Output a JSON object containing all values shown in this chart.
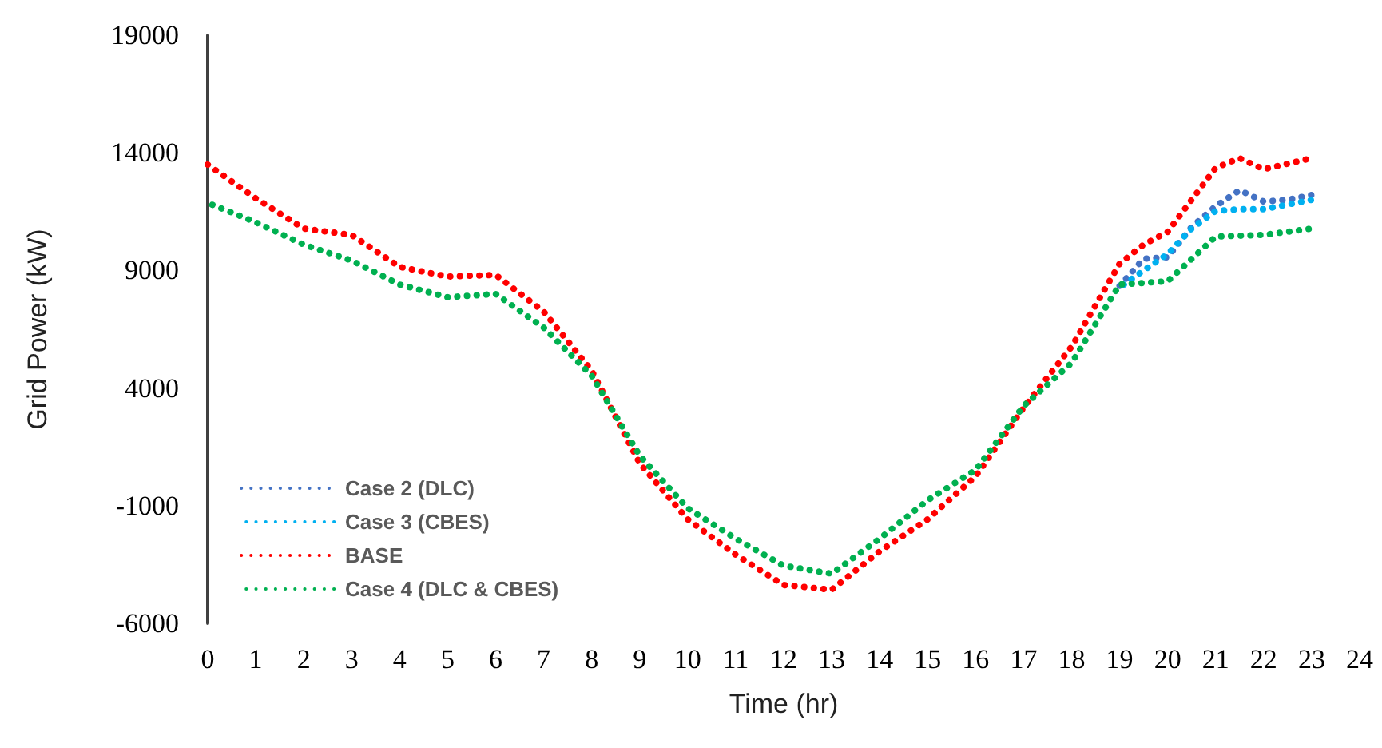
{
  "chart_data": {
    "type": "line",
    "xlabel": "Time (hr)",
    "ylabel": "Grid Power (kW)",
    "xlim": [
      0,
      24
    ],
    "xticks": [
      0,
      1,
      2,
      3,
      4,
      5,
      6,
      7,
      8,
      9,
      10,
      11,
      12,
      13,
      14,
      15,
      16,
      17,
      18,
      19,
      20,
      21,
      22,
      23,
      24
    ],
    "ylim": [
      -6000,
      19000
    ],
    "yticks": [
      -6000,
      -1000,
      4000,
      9000,
      14000,
      19000
    ],
    "grid": false,
    "legend": "bottom left",
    "marker": "none",
    "line_style": "dotted",
    "series": [
      {
        "name": "Case 2 (DLC)",
        "color": "#4472c4",
        "x": [
          19,
          19.5,
          20,
          20.5,
          21,
          21.5,
          22,
          22.5,
          23
        ],
        "values": [
          8350,
          9500,
          9560,
          10850,
          11730,
          12410,
          11930,
          12000,
          12210
        ]
      },
      {
        "name": "Case 3 (CBES)",
        "color": "#00b0f0",
        "x": [
          19,
          19.5,
          20,
          20.5,
          21,
          21.5,
          22,
          22.5,
          23
        ],
        "values": [
          8270,
          9000,
          9700,
          10780,
          11530,
          11600,
          11600,
          11800,
          12000
        ]
      },
      {
        "name": "BASE",
        "color": "#ff0000",
        "x": [
          0,
          1,
          2,
          3,
          4,
          5,
          6,
          7,
          8,
          9,
          10,
          11,
          12,
          13,
          14,
          15,
          16,
          17,
          18,
          19,
          19.5,
          20,
          21,
          21.5,
          22,
          23
        ],
        "values": [
          13500,
          12070,
          10780,
          10510,
          9150,
          8740,
          8810,
          7250,
          4740,
          800,
          -1580,
          -3080,
          -4370,
          -4570,
          -2940,
          -1580,
          250,
          3170,
          5760,
          9290,
          10100,
          10640,
          13360,
          13770,
          13300,
          13770
        ]
      },
      {
        "name": "Case 4 (DLC & CBES)",
        "color": "#00b050",
        "x": [
          0,
          1,
          2,
          3,
          4,
          5,
          6,
          7,
          8,
          9,
          10,
          11,
          12,
          13,
          14,
          15,
          16,
          17,
          18,
          19,
          20,
          20.5,
          21,
          22,
          23
        ],
        "values": [
          11870,
          11050,
          10100,
          9420,
          8400,
          7860,
          8000,
          6570,
          4530,
          1130,
          -1110,
          -2400,
          -3550,
          -3890,
          -2400,
          -770,
          520,
          3240,
          5070,
          8400,
          8540,
          9490,
          10440,
          10510,
          10780
        ]
      }
    ]
  }
}
